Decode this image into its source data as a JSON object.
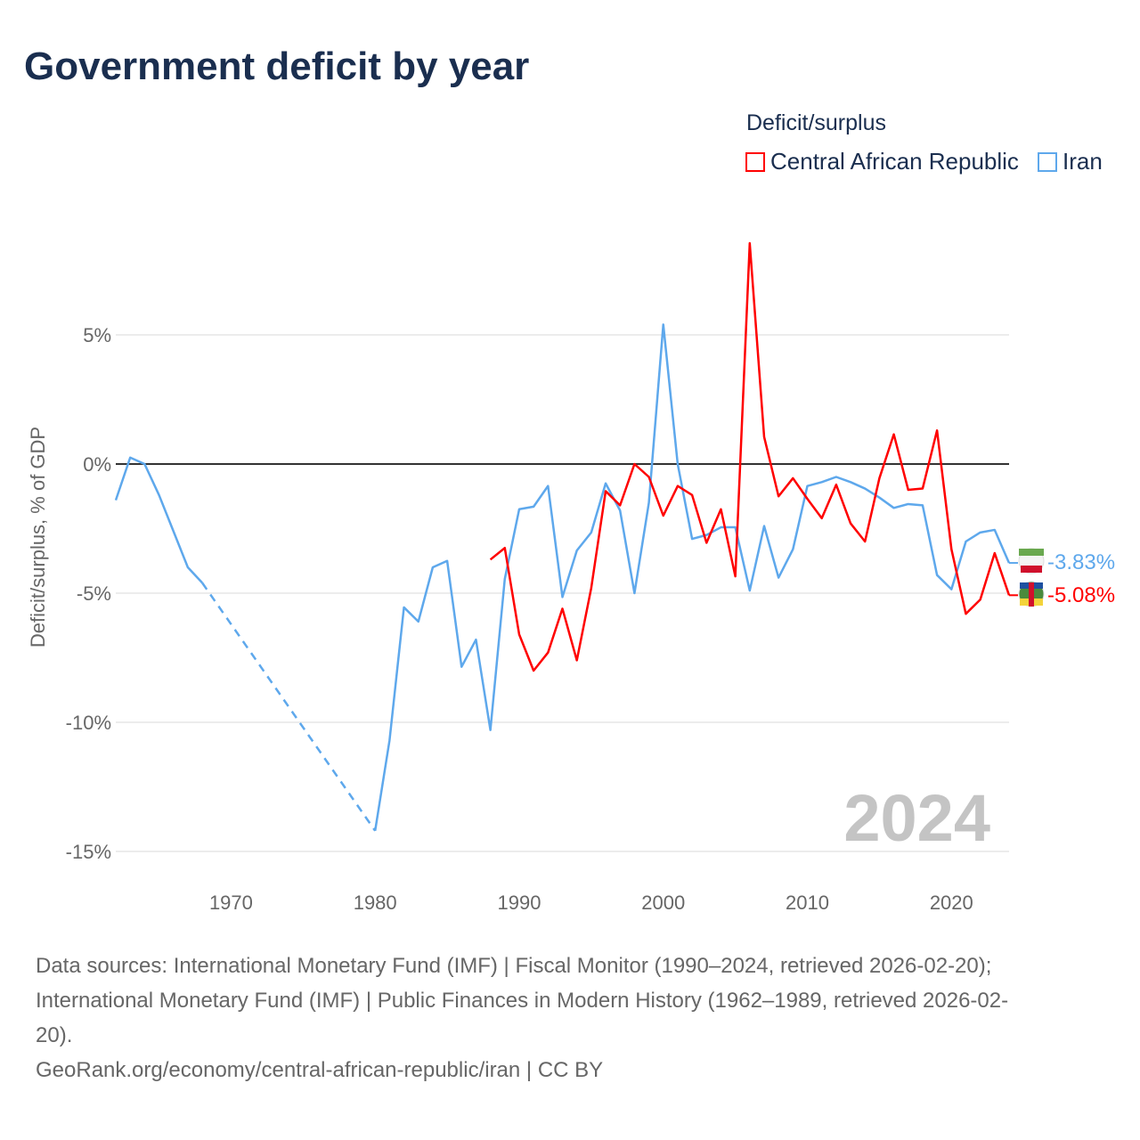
{
  "title": "Government deficit by year",
  "legend": {
    "title": "Deficit/surplus",
    "items": [
      {
        "label": "Central African Republic",
        "color": "#ff0000"
      },
      {
        "label": "Iran",
        "color": "#5ea8ec"
      }
    ]
  },
  "footer": {
    "line1": "Data sources: International Monetary Fund (IMF) | Fiscal Monitor (1990–2024, retrieved 2026-02-20);",
    "line2": "International Monetary Fund (IMF) | Public Finances in Modern History (1962–1989, retrieved 2026-02-",
    "line3": "20).",
    "line4": "GeoRank.org/economy/central-african-republic/iran | CC BY"
  },
  "chart_data": {
    "type": "line",
    "title": "Government deficit by year",
    "ylabel": "Deficit/surplus, % of GDP",
    "xlabel": "",
    "year_watermark": "2024",
    "xlim": [
      1962,
      2024
    ],
    "ylim": [
      -16,
      9
    ],
    "xticks": [
      1970,
      1980,
      1990,
      2000,
      2010,
      2020
    ],
    "yticks": [
      {
        "v": 5,
        "label": "5%"
      },
      {
        "v": 0,
        "label": "0%"
      },
      {
        "v": -5,
        "label": "-5%"
      },
      {
        "v": -10,
        "label": "-10%"
      },
      {
        "v": -15,
        "label": "-15%"
      }
    ],
    "series": [
      {
        "name": "Iran",
        "color": "#5ea8ec",
        "end_label": "-3.83%",
        "dashed_gap": [
          1968,
          1980
        ],
        "x": [
          1962,
          1963,
          1964,
          1965,
          1966,
          1967,
          1968,
          1980,
          1981,
          1982,
          1983,
          1984,
          1985,
          1986,
          1987,
          1988,
          1989,
          1990,
          1991,
          1992,
          1993,
          1994,
          1995,
          1996,
          1997,
          1998,
          1999,
          2000,
          2001,
          2002,
          2003,
          2004,
          2005,
          2006,
          2007,
          2008,
          2009,
          2010,
          2011,
          2012,
          2013,
          2014,
          2015,
          2016,
          2017,
          2018,
          2019,
          2020,
          2021,
          2022,
          2023,
          2024
        ],
        "y": [
          -1.4,
          0.25,
          0,
          -1.2,
          -2.6,
          -4.0,
          -4.6,
          -14.2,
          -10.7,
          -5.55,
          -6.1,
          -4.0,
          -3.75,
          -7.85,
          -6.8,
          -10.3,
          -4.45,
          -1.75,
          -1.65,
          -0.85,
          -5.15,
          -3.35,
          -2.65,
          -0.75,
          -1.8,
          -5.0,
          -1.5,
          5.4,
          0,
          -2.9,
          -2.75,
          -2.45,
          -2.45,
          -4.9,
          -2.4,
          -4.4,
          -3.3,
          -0.85,
          -0.7,
          -0.5,
          -0.7,
          -0.95,
          -1.3,
          -1.7,
          -1.55,
          -1.6,
          -4.3,
          -4.85,
          -3.0,
          -2.65,
          -2.55,
          -3.83
        ]
      },
      {
        "name": "Central African Republic",
        "color": "#ff0000",
        "end_label": "-5.08%",
        "x": [
          1988,
          1989,
          1990,
          1991,
          1992,
          1993,
          1994,
          1995,
          1996,
          1997,
          1998,
          1999,
          2000,
          2001,
          2002,
          2003,
          2004,
          2005,
          2006,
          2007,
          2008,
          2009,
          2010,
          2011,
          2012,
          2013,
          2014,
          2015,
          2016,
          2017,
          2018,
          2019,
          2020,
          2021,
          2022,
          2023,
          2024
        ],
        "y": [
          -3.7,
          -3.25,
          -6.6,
          -8.0,
          -7.3,
          -5.6,
          -7.6,
          -4.8,
          -1.05,
          -1.6,
          0,
          -0.5,
          -2.0,
          -0.85,
          -1.2,
          -3.05,
          -1.75,
          -4.35,
          8.55,
          1.05,
          -1.25,
          -0.55,
          -1.35,
          -2.1,
          -0.8,
          -2.3,
          -3.0,
          -0.55,
          1.15,
          -1.0,
          -0.95,
          1.3,
          -3.3,
          -5.8,
          -5.25,
          -3.45,
          -5.08
        ]
      }
    ]
  }
}
